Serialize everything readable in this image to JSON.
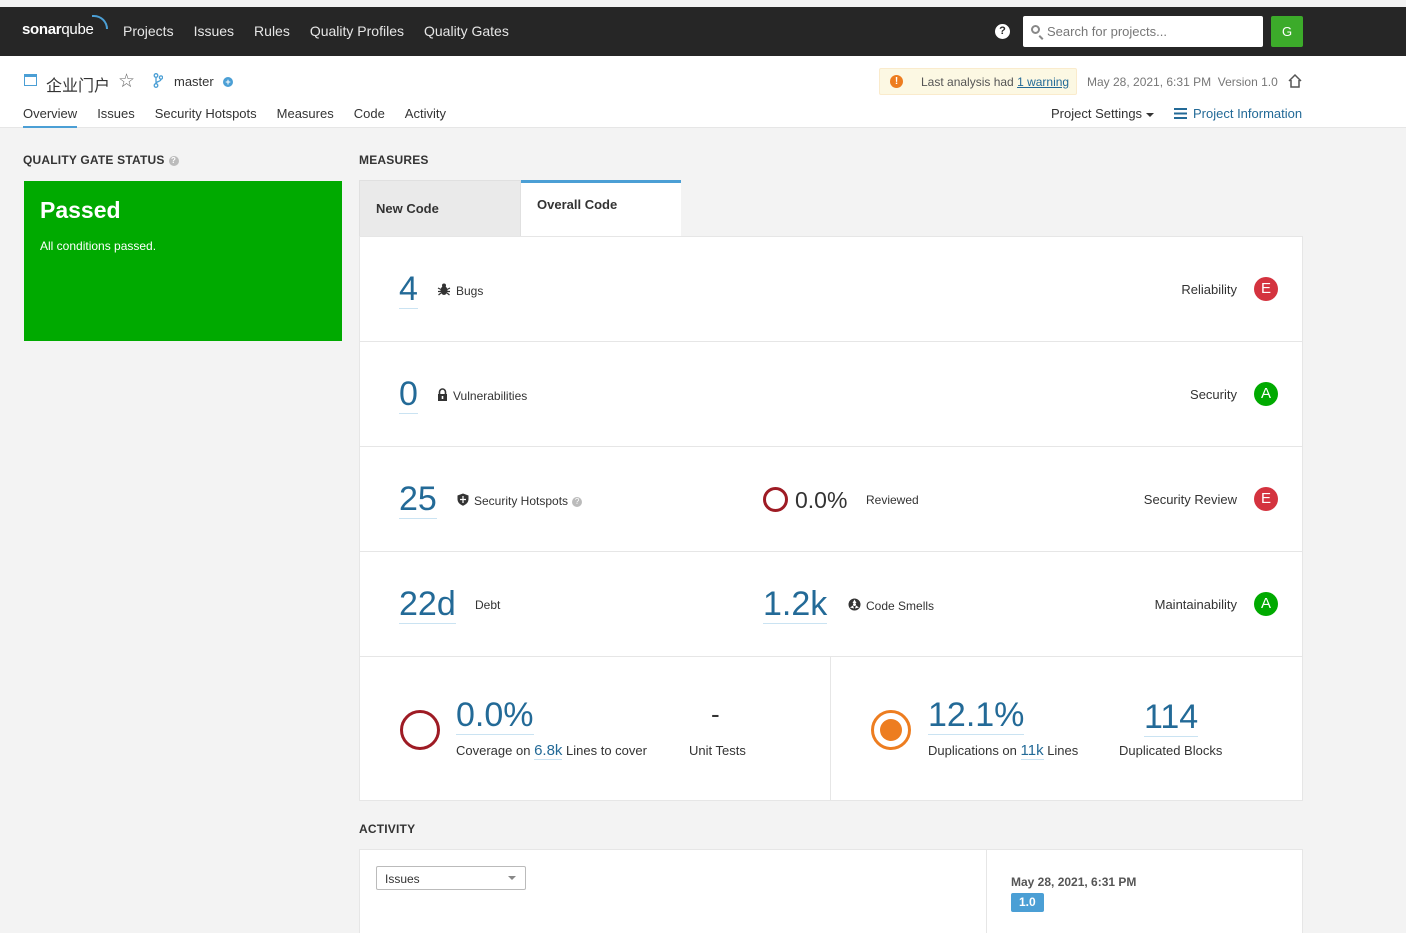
{
  "nav": {
    "logo_a": "sonar",
    "logo_b": "qube",
    "items": [
      "Projects",
      "Issues",
      "Rules",
      "Quality Profiles",
      "Quality Gates"
    ],
    "search_placeholder": "Search for projects...",
    "avatar_letter": "G"
  },
  "project": {
    "name": "企业门户",
    "branch": "master",
    "warning_prefix": "Last analysis had ",
    "warning_link": "1 warning",
    "analysis_date": "May 28, 2021, 6:31 PM",
    "version": "Version 1.0",
    "tabs": [
      "Overview",
      "Issues",
      "Security Hotspots",
      "Measures",
      "Code",
      "Activity"
    ],
    "settings_label": "Project Settings",
    "info_label": "Project Information"
  },
  "quality_gate": {
    "title": "QUALITY GATE STATUS",
    "status": "Passed",
    "subtitle": "All conditions passed.",
    "color": "#00aa00"
  },
  "measures": {
    "title": "MEASURES",
    "tabs": [
      "New Code",
      "Overall Code"
    ],
    "bugs": {
      "value": "4",
      "label": "Bugs",
      "rating_label": "Reliability",
      "rating": "E"
    },
    "vulnerabilities": {
      "value": "0",
      "label": "Vulnerabilities",
      "rating_label": "Security",
      "rating": "A"
    },
    "hotspots": {
      "value": "25",
      "label": "Security Hotspots",
      "reviewed_value": "0.0%",
      "reviewed_label": "Reviewed",
      "rating_label": "Security Review",
      "rating": "E"
    },
    "maintainability": {
      "debt_value": "22d",
      "debt_label": "Debt",
      "smells_value": "1.2k",
      "smells_label": "Code Smells",
      "rating_label": "Maintainability",
      "rating": "A"
    },
    "coverage": {
      "value": "0.0%",
      "label_prefix": "Coverage on ",
      "lines_value": "6.8k",
      "label_suffix": " Lines to cover",
      "unit_tests_value": "-",
      "unit_tests_label": "Unit Tests"
    },
    "duplications": {
      "value": "12.1%",
      "label_prefix": "Duplications on ",
      "lines_value": "11k",
      "label_suffix": " Lines",
      "blocks_value": "114",
      "blocks_label": "Duplicated Blocks"
    }
  },
  "activity": {
    "title": "ACTIVITY",
    "select_value": "Issues",
    "date": "May 28, 2021, 6:31 PM",
    "version": "1.0"
  },
  "colors": {
    "accent": "#4b9fd5",
    "link": "#236a97",
    "rating_e": "#d4333f",
    "rating_a": "#00aa00",
    "duplication": "#ed7d20"
  }
}
